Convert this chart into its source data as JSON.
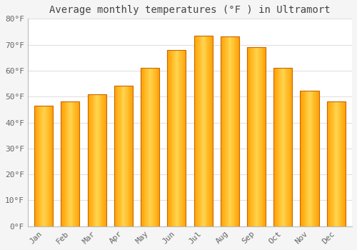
{
  "months": [
    "Jan",
    "Feb",
    "Mar",
    "Apr",
    "May",
    "Jun",
    "Jul",
    "Aug",
    "Sep",
    "Oct",
    "Nov",
    "Dec"
  ],
  "values": [
    46.5,
    48.2,
    51.0,
    54.2,
    61.0,
    68.0,
    73.5,
    73.3,
    69.0,
    61.2,
    52.2,
    48.0
  ],
  "bar_color_center": "#FFD54F",
  "bar_color_edge": "#FFA000",
  "bar_border_color": "#E65100",
  "background_color": "#F5F5F5",
  "plot_bg_color": "#FFFFFF",
  "title": "Average monthly temperatures (°F ) in Ultramort",
  "ylim": [
    0,
    80
  ],
  "yticks": [
    0,
    10,
    20,
    30,
    40,
    50,
    60,
    70,
    80
  ],
  "ytick_labels": [
    "0°F",
    "10°F",
    "20°F",
    "30°F",
    "40°F",
    "50°F",
    "60°F",
    "70°F",
    "80°F"
  ],
  "grid_color": "#E0E0E0",
  "title_fontsize": 10,
  "tick_fontsize": 8,
  "bar_width": 0.7
}
